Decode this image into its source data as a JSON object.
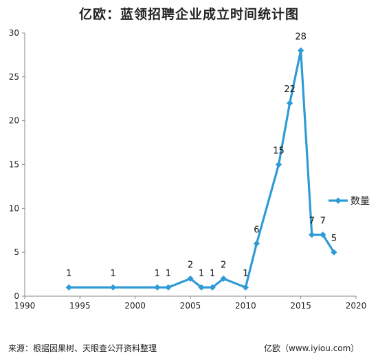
{
  "chart_data": {
    "type": "line",
    "title": "亿欧：蓝领招聘企业成立时间统计图",
    "xlabel": "",
    "ylabel": "",
    "xlim": [
      1990,
      2020
    ],
    "ylim": [
      0,
      30
    ],
    "x_ticks": [
      1990,
      1995,
      2000,
      2005,
      2010,
      2015,
      2020
    ],
    "y_ticks": [
      0,
      5,
      10,
      15,
      20,
      25,
      30
    ],
    "grid": false,
    "legend_position": "right",
    "series": [
      {
        "name": "数量",
        "color": "#2e9bd6",
        "x": [
          1994,
          1998,
          2002,
          2003,
          2005,
          2006,
          2007,
          2008,
          2010,
          2011,
          2013,
          2014,
          2015,
          2016,
          2017,
          2018
        ],
        "values": [
          1,
          1,
          1,
          1,
          2,
          1,
          1,
          2,
          1,
          6,
          15,
          22,
          28,
          7,
          7,
          5
        ],
        "data_labels": [
          "1",
          "1",
          "1",
          "1",
          "2",
          "1",
          "1",
          "2",
          "1",
          "6",
          "15",
          "22",
          "28",
          "7",
          "7",
          "5"
        ]
      }
    ]
  },
  "footer": {
    "source": "来源：根据因果树、天眼查公开资料整理",
    "brand": "亿欧（www.iyiou.com）"
  }
}
